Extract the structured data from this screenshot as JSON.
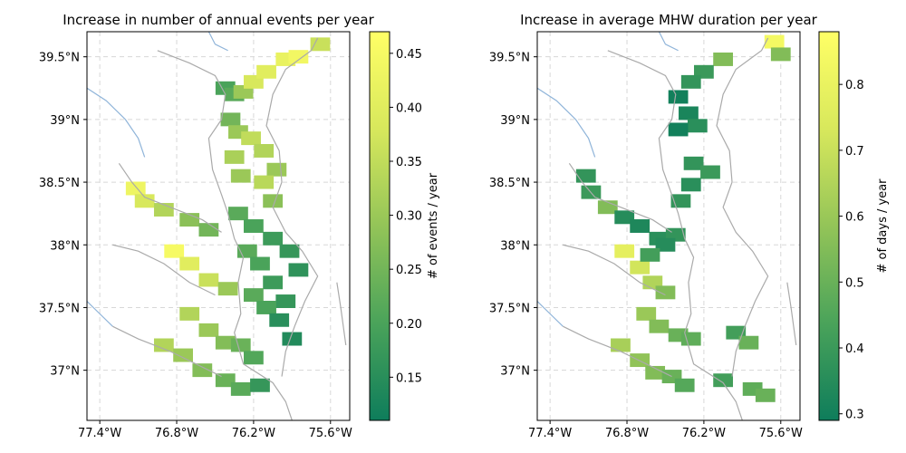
{
  "chart_data": [
    {
      "type": "heatmap",
      "title": "Increase in number of annual events per year",
      "x_ticks": [
        "77.4°W",
        "76.8°W",
        "76.2°W",
        "75.6°W"
      ],
      "y_ticks": [
        "37°N",
        "37.5°N",
        "38°N",
        "38.5°N",
        "39°N",
        "39.5°N"
      ],
      "x_range": [
        -77.5,
        -75.45
      ],
      "y_range": [
        36.6,
        39.7
      ],
      "grid": true,
      "colorbar": {
        "label": "# of events / year",
        "ticks": [
          "0.15",
          "0.20",
          "0.25",
          "0.30",
          "0.35",
          "0.40",
          "0.45"
        ],
        "range": [
          0.11,
          0.47
        ]
      },
      "colormap": [
        "#0e7d5b",
        "#4aa35a",
        "#93c458",
        "#d8e85c",
        "#ffff66"
      ],
      "cells": [
        [
          -76.42,
          39.25,
          0.2
        ],
        [
          -76.35,
          39.2,
          0.22
        ],
        [
          -76.28,
          39.22,
          0.3
        ],
        [
          -76.2,
          39.3,
          0.38
        ],
        [
          -76.1,
          39.38,
          0.4
        ],
        [
          -75.95,
          39.48,
          0.42
        ],
        [
          -75.85,
          39.5,
          0.44
        ],
        [
          -75.68,
          39.6,
          0.36
        ],
        [
          -76.38,
          39.0,
          0.25
        ],
        [
          -76.32,
          38.9,
          0.3
        ],
        [
          -76.22,
          38.85,
          0.35
        ],
        [
          -76.12,
          38.75,
          0.33
        ],
        [
          -76.02,
          38.6,
          0.3
        ],
        [
          -76.35,
          38.7,
          0.32
        ],
        [
          -76.3,
          38.55,
          0.3
        ],
        [
          -76.12,
          38.5,
          0.34
        ],
        [
          -76.05,
          38.35,
          0.28
        ],
        [
          -77.12,
          38.45,
          0.43
        ],
        [
          -77.05,
          38.35,
          0.38
        ],
        [
          -76.9,
          38.28,
          0.33
        ],
        [
          -76.7,
          38.2,
          0.28
        ],
        [
          -76.55,
          38.12,
          0.25
        ],
        [
          -76.32,
          38.25,
          0.22
        ],
        [
          -76.2,
          38.15,
          0.2
        ],
        [
          -76.05,
          38.05,
          0.18
        ],
        [
          -75.92,
          37.95,
          0.17
        ],
        [
          -75.85,
          37.8,
          0.16
        ],
        [
          -76.25,
          37.95,
          0.22
        ],
        [
          -76.15,
          37.85,
          0.2
        ],
        [
          -76.05,
          37.7,
          0.18
        ],
        [
          -75.95,
          37.55,
          0.17
        ],
        [
          -76.82,
          37.95,
          0.45
        ],
        [
          -76.7,
          37.85,
          0.4
        ],
        [
          -76.55,
          37.72,
          0.36
        ],
        [
          -76.4,
          37.65,
          0.3
        ],
        [
          -76.2,
          37.6,
          0.22
        ],
        [
          -76.1,
          37.5,
          0.2
        ],
        [
          -76.0,
          37.4,
          0.15
        ],
        [
          -75.9,
          37.25,
          0.14
        ],
        [
          -76.7,
          37.45,
          0.33
        ],
        [
          -76.55,
          37.32,
          0.3
        ],
        [
          -76.42,
          37.22,
          0.27
        ],
        [
          -76.3,
          37.2,
          0.24
        ],
        [
          -76.2,
          37.1,
          0.21
        ],
        [
          -76.9,
          37.2,
          0.33
        ],
        [
          -76.75,
          37.12,
          0.3
        ],
        [
          -76.6,
          37.0,
          0.27
        ],
        [
          -76.42,
          36.92,
          0.24
        ],
        [
          -76.3,
          36.85,
          0.22
        ],
        [
          -76.15,
          36.88,
          0.17
        ]
      ]
    },
    {
      "type": "heatmap",
      "title": "Increase in average MHW duration per year",
      "x_ticks": [
        "77.4°W",
        "76.8°W",
        "76.2°W",
        "75.6°W"
      ],
      "y_ticks": [
        "37°N",
        "37.5°N",
        "38°N",
        "38.5°N",
        "39°N",
        "39.5°N"
      ],
      "x_range": [
        -77.5,
        -75.45
      ],
      "y_range": [
        36.6,
        39.7
      ],
      "grid": true,
      "colorbar": {
        "label": "# of days / year",
        "ticks": [
          "0.3",
          "0.4",
          "0.5",
          "0.6",
          "0.7",
          "0.8"
        ],
        "range": [
          0.29,
          0.88
        ]
      },
      "colormap": [
        "#0e7d5b",
        "#4aa35a",
        "#93c458",
        "#d8e85c",
        "#ffff66"
      ],
      "cells": [
        [
          -75.65,
          39.62,
          0.84
        ],
        [
          -75.6,
          39.52,
          0.55
        ],
        [
          -76.05,
          39.48,
          0.55
        ],
        [
          -76.2,
          39.38,
          0.4
        ],
        [
          -76.3,
          39.3,
          0.38
        ],
        [
          -76.4,
          39.18,
          0.3
        ],
        [
          -76.32,
          39.05,
          0.32
        ],
        [
          -76.25,
          38.95,
          0.36
        ],
        [
          -76.4,
          38.92,
          0.3
        ],
        [
          -76.28,
          38.65,
          0.38
        ],
        [
          -76.15,
          38.58,
          0.4
        ],
        [
          -76.3,
          38.48,
          0.36
        ],
        [
          -77.12,
          38.55,
          0.38
        ],
        [
          -77.08,
          38.42,
          0.4
        ],
        [
          -76.95,
          38.3,
          0.55
        ],
        [
          -76.82,
          38.22,
          0.35
        ],
        [
          -76.7,
          38.15,
          0.33
        ],
        [
          -76.55,
          38.05,
          0.36
        ],
        [
          -76.42,
          38.08,
          0.38
        ],
        [
          -76.82,
          37.95,
          0.78
        ],
        [
          -76.7,
          37.82,
          0.72
        ],
        [
          -76.6,
          37.7,
          0.65
        ],
        [
          -76.5,
          37.62,
          0.55
        ],
        [
          -76.65,
          37.45,
          0.6
        ],
        [
          -76.55,
          37.35,
          0.55
        ],
        [
          -76.4,
          37.28,
          0.5
        ],
        [
          -76.3,
          37.25,
          0.48
        ],
        [
          -76.85,
          37.2,
          0.63
        ],
        [
          -76.7,
          37.08,
          0.58
        ],
        [
          -76.58,
          36.98,
          0.55
        ],
        [
          -76.45,
          36.95,
          0.5
        ],
        [
          -76.35,
          36.88,
          0.46
        ],
        [
          -75.95,
          37.3,
          0.42
        ],
        [
          -75.85,
          37.22,
          0.5
        ],
        [
          -76.05,
          36.92,
          0.42
        ],
        [
          -75.82,
          36.85,
          0.48
        ],
        [
          -75.72,
          36.8,
          0.5
        ],
        [
          -76.5,
          38.0,
          0.35
        ],
        [
          -76.62,
          37.92,
          0.42
        ],
        [
          -76.38,
          38.35,
          0.38
        ]
      ]
    }
  ]
}
